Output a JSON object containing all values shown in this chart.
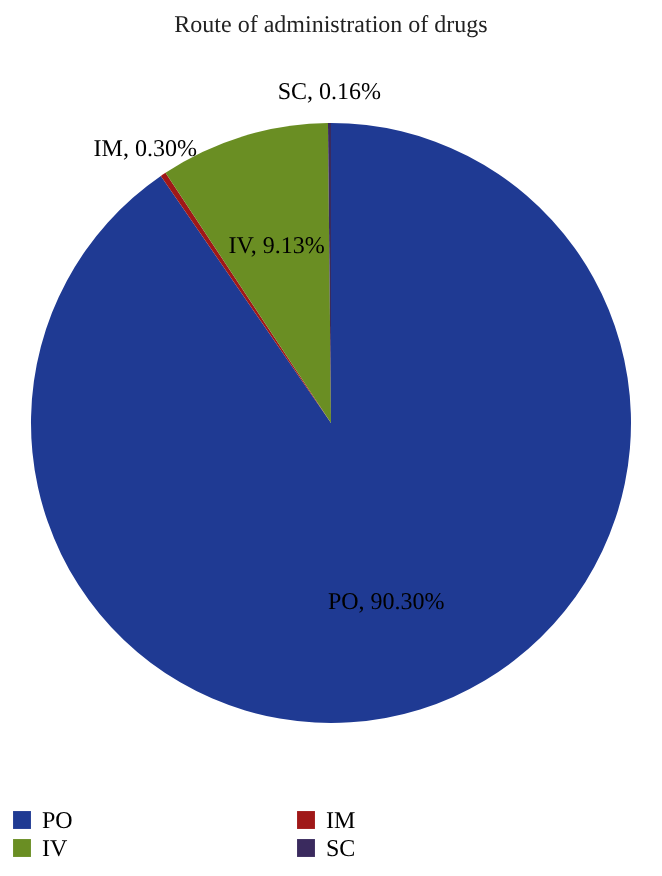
{
  "chart_data": {
    "type": "pie",
    "title": "Route of administration of drugs",
    "categories": [
      "PO",
      "IM",
      "IV",
      "SC"
    ],
    "values": [
      90.3,
      0.3,
      9.13,
      0.16
    ],
    "colors": [
      "#1f3a93",
      "#a01818",
      "#6a8e23",
      "#3a2a5e"
    ],
    "value_labels": [
      "PO, 90.30%",
      "IM, 0.30%",
      "IV, 9.13%",
      "SC, 0.16%"
    ],
    "legend": "bottom"
  }
}
